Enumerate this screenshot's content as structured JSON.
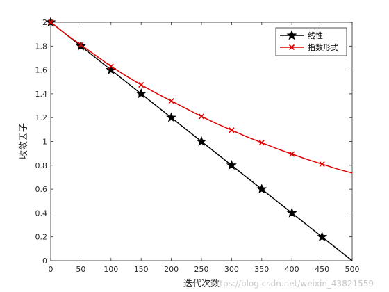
{
  "chart_data": {
    "type": "line",
    "xlabel": "迭代次数",
    "ylabel": "收敛因子",
    "xlim": [
      0,
      500
    ],
    "ylim": [
      0,
      2
    ],
    "x_ticks": [
      "0",
      "50",
      "100",
      "150",
      "200",
      "250",
      "300",
      "350",
      "400",
      "450",
      "500"
    ],
    "y_ticks": [
      "0",
      "0.2",
      "0.4",
      "0.6",
      "0.8",
      "1",
      "1.2",
      "1.4",
      "1.6",
      "1.8",
      "2"
    ],
    "grid": false,
    "legend_position": "top-right",
    "series": [
      {
        "name": "线性",
        "color": "#000000",
        "marker": "star",
        "x": [
          0,
          500
        ],
        "y": [
          2,
          0
        ],
        "marker_x": [
          0,
          50,
          100,
          150,
          200,
          250,
          300,
          350,
          400,
          450
        ],
        "marker_y": [
          2,
          1.8,
          1.6,
          1.4,
          1.2,
          1.0,
          0.8,
          0.6,
          0.4,
          0.2
        ]
      },
      {
        "name": "指数形式",
        "color": "#e00000",
        "marker": "x",
        "x": [
          0,
          25,
          50,
          75,
          100,
          125,
          150,
          175,
          200,
          225,
          250,
          275,
          300,
          325,
          350,
          375,
          400,
          425,
          450,
          475,
          500
        ],
        "y": [
          2.0,
          1.9,
          1.81,
          1.72,
          1.63,
          1.55,
          1.475,
          1.405,
          1.34,
          1.275,
          1.21,
          1.15,
          1.095,
          1.04,
          0.99,
          0.94,
          0.895,
          0.85,
          0.81,
          0.77,
          0.735
        ],
        "marker_x": [
          0,
          50,
          100,
          150,
          200,
          250,
          300,
          350,
          400,
          450
        ],
        "marker_y": [
          2.0,
          1.81,
          1.63,
          1.475,
          1.34,
          1.21,
          1.095,
          0.99,
          0.895,
          0.81
        ]
      }
    ]
  },
  "watermark": "https://blog.csdn.net/weixin_43821559"
}
